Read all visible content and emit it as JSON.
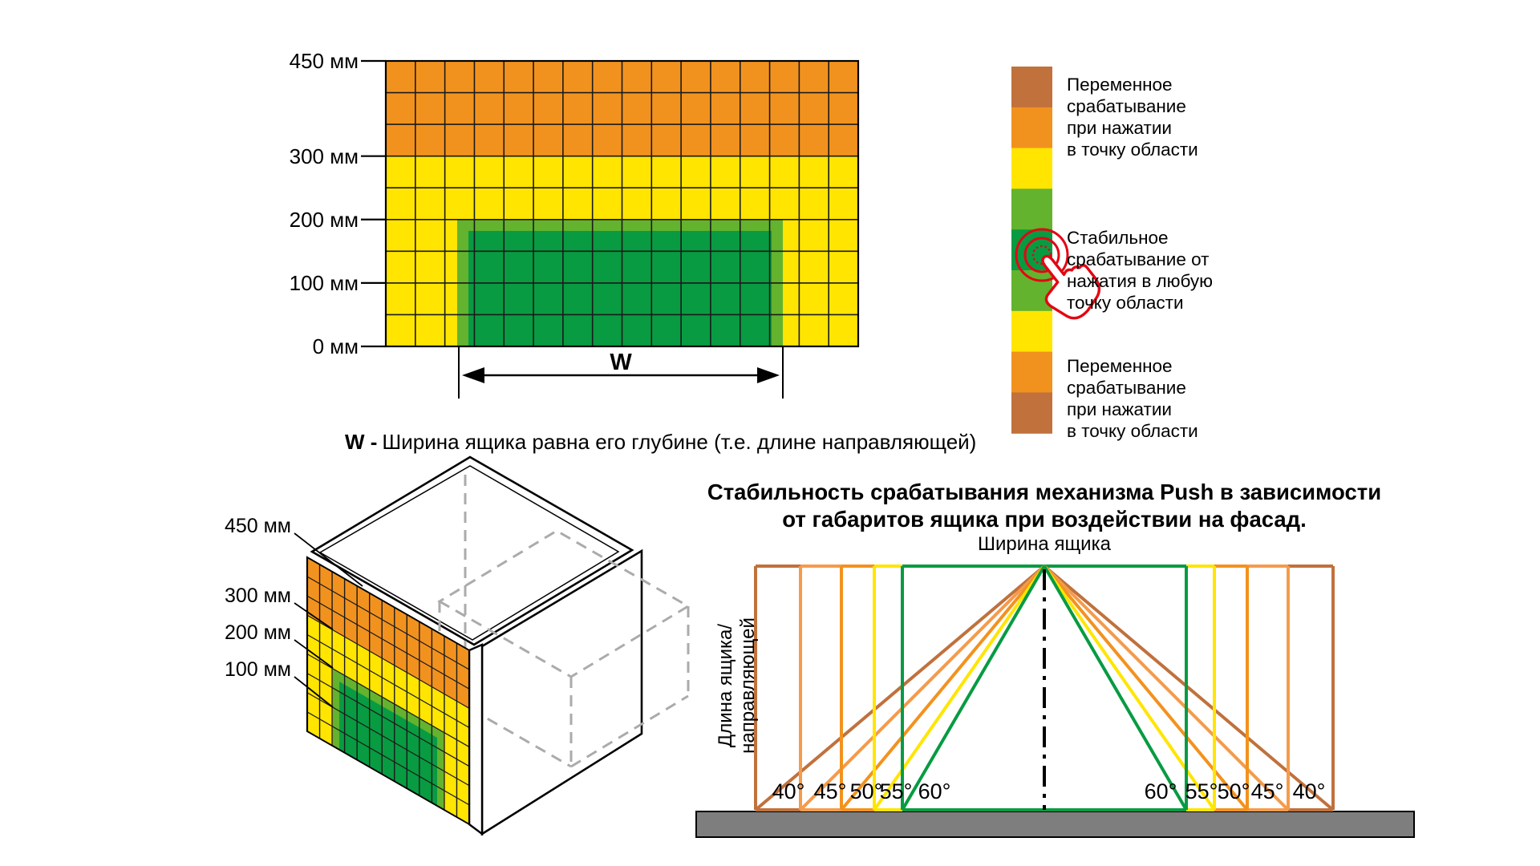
{
  "colors": {
    "orange": "#F2921E",
    "sienna": "#C0713C",
    "light_orange": "#F49B4C",
    "yellow": "#FFE500",
    "light_green": "#63B32E",
    "dark_green": "#089B42",
    "gray_bar": "#7E7E7E",
    "dash_gray": "#ABABAB",
    "red": "#E30613",
    "line": "#1A1A1A"
  },
  "grid_figure": {
    "axis_labels": [
      {
        "label": "450 мм",
        "mm": 450
      },
      {
        "label": "300 мм",
        "mm": 300
      },
      {
        "label": "200 мм",
        "mm": 200
      },
      {
        "label": "100 мм",
        "mm": 100
      },
      {
        "label": "0 мм",
        "mm": 0
      }
    ],
    "w_label": "W",
    "caption_w": "W -",
    "caption_text": "Ширина ящика равна его глубине  (т.е. длине направляющей)"
  },
  "legend": {
    "segments": [
      "sienna",
      "orange",
      "yellow",
      "light_green",
      "dark_green",
      "light_green",
      "yellow",
      "orange",
      "sienna"
    ],
    "top_text": "Переменное\nсрабатывание\nпри нажатии\nв точку области",
    "middle_text": "Стабильное\nсрабатывание от\nнажатия в любую\nточку области",
    "bottom_text": "Переменное\nсрабатывание\nпри нажатии\nв точку области"
  },
  "iso_figure": {
    "labels": [
      {
        "label": "450 мм",
        "mm": 450
      },
      {
        "label": "300 мм",
        "mm": 300
      },
      {
        "label": "200 мм",
        "mm": 200
      },
      {
        "label": "100 мм",
        "mm": 100
      }
    ]
  },
  "push_chart": {
    "title_line1": "Стабильность срабатывания механизма Push в зависимости",
    "title_line2": "от габаритов ящика при воздействии на фасад.",
    "top_label": "Ширина ящика",
    "y_axis_label": "Длина ящика/направляющей",
    "angles": [
      {
        "label": "40°",
        "deg": 40,
        "color": "sienna"
      },
      {
        "label": "45°",
        "deg": 45,
        "color": "light_orange"
      },
      {
        "label": "50°",
        "deg": 50,
        "color": "orange"
      },
      {
        "label": "55°",
        "deg": 55,
        "color": "yellow"
      },
      {
        "label": "60°",
        "deg": 60,
        "color": "dark_green"
      }
    ]
  },
  "chart_data": {
    "type": "diagram",
    "title": "Стабильность срабатывания механизма Push в зависимости от габаритов ящика при воздействии на фасад.",
    "x_label": "Ширина ящика",
    "y_label": "Длина ящика/направляющей",
    "angle_series_deg": [
      40,
      45,
      50,
      55,
      60
    ],
    "angle_labels_left": [
      "40°",
      "45°",
      "50°",
      "55°",
      "60°"
    ],
    "angle_labels_right": [
      "60°",
      "55°",
      "50°",
      "45°",
      "40°"
    ],
    "zone_mm_ticks": [
      450,
      300,
      200,
      100,
      0
    ],
    "notes": "Nested colored rectangles; fan of lines from top-center apex to bottom corners; stable zone = green"
  }
}
